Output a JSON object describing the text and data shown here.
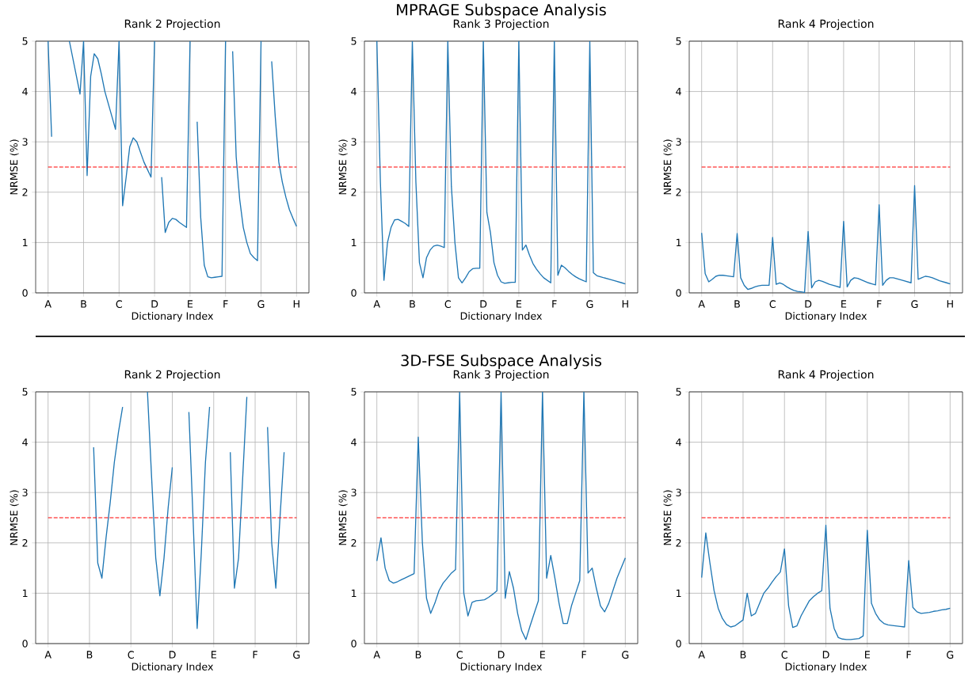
{
  "chart_data": [
    {
      "type": "line",
      "title": "Rank 2 Projection",
      "xlabel": "Dictionary Index",
      "ylabel": "NRMSE (%)",
      "ylim": [
        0,
        5
      ],
      "yticks": [
        0,
        1,
        2,
        3,
        4,
        5
      ],
      "grid": true,
      "line_style": "solid",
      "categories": [
        "A",
        null,
        null,
        null,
        null,
        null,
        null,
        null,
        null,
        null,
        "B",
        null,
        null,
        null,
        null,
        null,
        null,
        null,
        null,
        null,
        "C",
        null,
        null,
        null,
        null,
        null,
        null,
        null,
        null,
        null,
        "D",
        null,
        null,
        null,
        null,
        null,
        null,
        null,
        null,
        null,
        "E",
        null,
        null,
        null,
        null,
        null,
        null,
        null,
        null,
        null,
        "F",
        null,
        null,
        null,
        null,
        null,
        null,
        null,
        null,
        null,
        "G",
        null,
        null,
        null,
        null,
        null,
        null,
        null,
        null,
        null,
        "H"
      ],
      "ref_lines": [
        {
          "axis": "y",
          "value": 2.5,
          "color": "#ff0000",
          "line_style": "dashed"
        }
      ],
      "series": [
        {
          "color": "#1f77b4",
          "values": [
            5,
            3.1,
            null,
            null,
            null,
            null,
            5,
            4.65,
            4.3,
            3.95,
            5,
            2.33,
            4.3,
            4.75,
            4.65,
            4.35,
            4.0,
            3.75,
            3.5,
            3.25,
            5,
            1.73,
            2.3,
            2.9,
            3.08,
            3.0,
            2.8,
            2.6,
            2.45,
            2.3,
            5,
            null,
            2.3,
            1.2,
            1.4,
            1.48,
            1.46,
            1.4,
            1.35,
            1.3,
            5,
            null,
            3.4,
            1.5,
            0.55,
            0.32,
            0.3,
            0.31,
            0.32,
            0.33,
            5,
            null,
            4.8,
            2.7,
            1.85,
            1.3,
            1.0,
            0.78,
            0.7,
            0.64,
            5,
            null,
            null,
            4.6,
            3.5,
            2.6,
            2.2,
            1.9,
            1.65,
            1.48,
            1.32
          ]
        }
      ]
    },
    {
      "type": "line",
      "title": "Rank 3 Projection",
      "xlabel": "Dictionary Index",
      "ylabel": "NRMSE (%)",
      "annotations": [
        "MPRAGE Subspace Analysis"
      ],
      "ylim": [
        0,
        5
      ],
      "yticks": [
        0,
        1,
        2,
        3,
        4,
        5
      ],
      "grid": true,
      "line_style": "solid",
      "categories": [
        "A",
        null,
        null,
        null,
        null,
        null,
        null,
        null,
        null,
        null,
        "B",
        null,
        null,
        null,
        null,
        null,
        null,
        null,
        null,
        null,
        "C",
        null,
        null,
        null,
        null,
        null,
        null,
        null,
        null,
        null,
        "D",
        null,
        null,
        null,
        null,
        null,
        null,
        null,
        null,
        null,
        "E",
        null,
        null,
        null,
        null,
        null,
        null,
        null,
        null,
        null,
        "F",
        null,
        null,
        null,
        null,
        null,
        null,
        null,
        null,
        null,
        "G",
        null,
        null,
        null,
        null,
        null,
        null,
        null,
        null,
        null,
        "H"
      ],
      "ref_lines": [
        {
          "axis": "y",
          "value": 2.5,
          "color": "#ff0000",
          "line_style": "dashed"
        }
      ],
      "series": [
        {
          "color": "#1f77b4",
          "values": [
            5,
            2.2,
            0.25,
            1.0,
            1.3,
            1.45,
            1.46,
            1.42,
            1.38,
            1.32,
            5,
            2.2,
            0.6,
            0.3,
            0.7,
            0.85,
            0.93,
            0.95,
            0.93,
            0.9,
            5,
            2.12,
            1.0,
            0.3,
            0.2,
            0.3,
            0.42,
            0.48,
            0.49,
            0.49,
            5,
            1.6,
            1.2,
            0.6,
            0.35,
            0.22,
            0.19,
            0.2,
            0.21,
            0.21,
            5,
            0.85,
            0.95,
            0.75,
            0.58,
            0.47,
            0.38,
            0.3,
            0.25,
            0.2,
            5,
            0.35,
            0.55,
            0.5,
            0.43,
            0.37,
            0.32,
            0.28,
            0.25,
            0.22,
            5,
            0.4,
            0.34,
            0.32,
            0.3,
            0.28,
            0.26,
            0.24,
            0.22,
            0.2,
            0.18
          ]
        }
      ]
    },
    {
      "type": "line",
      "title": "Rank 4 Projection",
      "xlabel": "Dictionary Index",
      "ylabel": "NRMSE (%)",
      "ylim": [
        0,
        5
      ],
      "yticks": [
        0,
        1,
        2,
        3,
        4,
        5
      ],
      "grid": true,
      "line_style": "solid",
      "categories": [
        "A",
        null,
        null,
        null,
        null,
        null,
        null,
        null,
        null,
        null,
        "B",
        null,
        null,
        null,
        null,
        null,
        null,
        null,
        null,
        null,
        "C",
        null,
        null,
        null,
        null,
        null,
        null,
        null,
        null,
        null,
        "D",
        null,
        null,
        null,
        null,
        null,
        null,
        null,
        null,
        null,
        "E",
        null,
        null,
        null,
        null,
        null,
        null,
        null,
        null,
        null,
        "F",
        null,
        null,
        null,
        null,
        null,
        null,
        null,
        null,
        null,
        "G",
        null,
        null,
        null,
        null,
        null,
        null,
        null,
        null,
        null,
        "H"
      ],
      "ref_lines": [
        {
          "axis": "y",
          "value": 2.5,
          "color": "#ff0000",
          "line_style": "dashed"
        }
      ],
      "series": [
        {
          "color": "#1f77b4",
          "values": [
            1.19,
            0.38,
            0.22,
            0.27,
            0.33,
            0.35,
            0.35,
            0.34,
            0.33,
            0.32,
            1.18,
            0.3,
            0.15,
            0.07,
            0.09,
            0.12,
            0.14,
            0.15,
            0.15,
            0.15,
            1.1,
            0.17,
            0.2,
            0.17,
            0.12,
            0.08,
            0.05,
            0.03,
            0.02,
            0.01,
            1.22,
            0.1,
            0.22,
            0.25,
            0.23,
            0.2,
            0.17,
            0.15,
            0.13,
            0.11,
            1.42,
            0.12,
            0.25,
            0.3,
            0.29,
            0.26,
            0.23,
            0.2,
            0.18,
            0.16,
            1.75,
            0.15,
            0.25,
            0.3,
            0.3,
            0.28,
            0.26,
            0.24,
            0.22,
            0.2,
            2.13,
            0.27,
            0.3,
            0.33,
            0.32,
            0.3,
            0.27,
            0.24,
            0.22,
            0.2,
            0.18
          ]
        }
      ]
    },
    {
      "type": "line",
      "title": "Rank 2 Projection",
      "xlabel": "Dictionary Index",
      "ylabel": "NRMSE (%)",
      "ylim": [
        0,
        5
      ],
      "yticks": [
        0,
        1,
        2,
        3,
        4,
        5
      ],
      "grid": true,
      "line_style": "solid",
      "categories": [
        "A",
        null,
        null,
        null,
        null,
        null,
        null,
        null,
        null,
        null,
        "B",
        null,
        null,
        null,
        null,
        null,
        null,
        null,
        null,
        null,
        "C",
        null,
        null,
        null,
        null,
        null,
        null,
        null,
        null,
        null,
        "D",
        null,
        null,
        null,
        null,
        null,
        null,
        null,
        null,
        null,
        "E",
        null,
        null,
        null,
        null,
        null,
        null,
        null,
        null,
        null,
        "F",
        null,
        null,
        null,
        null,
        null,
        null,
        null,
        null,
        null,
        "G"
      ],
      "ref_lines": [
        {
          "axis": "y",
          "value": 2.5,
          "color": "#ff0000",
          "line_style": "dashed"
        }
      ],
      "series": [
        {
          "color": "#1f77b4",
          "values": [
            null,
            null,
            null,
            null,
            null,
            null,
            null,
            null,
            null,
            null,
            null,
            3.9,
            1.6,
            1.3,
            2.1,
            2.8,
            3.6,
            4.2,
            4.7,
            null,
            null,
            null,
            null,
            null,
            5,
            3.3,
            1.7,
            0.95,
            1.7,
            2.7,
            3.5,
            null,
            null,
            null,
            4.6,
            2.5,
            0.3,
            1.8,
            3.6,
            4.7,
            null,
            null,
            null,
            null,
            3.8,
            1.1,
            1.7,
            3.3,
            4.9,
            null,
            null,
            null,
            null,
            4.3,
            2.0,
            1.1,
            2.5,
            3.8,
            null,
            null,
            null
          ]
        }
      ]
    },
    {
      "type": "line",
      "title": "Rank 3 Projection",
      "xlabel": "Dictionary Index",
      "ylabel": "NRMSE (%)",
      "annotations": [
        "3D-FSE Subspace Analysis"
      ],
      "ylim": [
        0,
        5
      ],
      "yticks": [
        0,
        1,
        2,
        3,
        4,
        5
      ],
      "grid": true,
      "line_style": "solid",
      "categories": [
        "A",
        null,
        null,
        null,
        null,
        null,
        null,
        null,
        null,
        null,
        "B",
        null,
        null,
        null,
        null,
        null,
        null,
        null,
        null,
        null,
        "C",
        null,
        null,
        null,
        null,
        null,
        null,
        null,
        null,
        null,
        "D",
        null,
        null,
        null,
        null,
        null,
        null,
        null,
        null,
        null,
        "E",
        null,
        null,
        null,
        null,
        null,
        null,
        null,
        null,
        null,
        "F",
        null,
        null,
        null,
        null,
        null,
        null,
        null,
        null,
        null,
        "G"
      ],
      "ref_lines": [
        {
          "axis": "y",
          "value": 2.5,
          "color": "#ff0000",
          "line_style": "dashed"
        }
      ],
      "series": [
        {
          "color": "#1f77b4",
          "values": [
            1.64,
            2.1,
            1.5,
            1.25,
            1.2,
            1.23,
            1.27,
            1.31,
            1.35,
            1.39,
            4.1,
            2.0,
            0.9,
            0.6,
            0.8,
            1.05,
            1.2,
            1.3,
            1.4,
            1.47,
            5,
            1.0,
            0.55,
            0.82,
            0.85,
            0.86,
            0.87,
            0.92,
            0.98,
            1.05,
            5,
            0.9,
            1.43,
            1.1,
            0.6,
            0.25,
            0.08,
            0.35,
            0.6,
            0.85,
            5,
            1.3,
            1.75,
            1.3,
            0.8,
            0.4,
            0.4,
            0.75,
            1.0,
            1.25,
            5,
            1.4,
            1.5,
            1.1,
            0.75,
            0.63,
            0.8,
            1.05,
            1.3,
            1.5,
            1.7
          ]
        }
      ]
    },
    {
      "type": "line",
      "title": "Rank 4 Projection",
      "xlabel": "Dictionary Index",
      "ylabel": "NRMSE (%)",
      "ylim": [
        0,
        5
      ],
      "yticks": [
        0,
        1,
        2,
        3,
        4,
        5
      ],
      "grid": true,
      "line_style": "solid",
      "categories": [
        "A",
        null,
        null,
        null,
        null,
        null,
        null,
        null,
        null,
        null,
        "B",
        null,
        null,
        null,
        null,
        null,
        null,
        null,
        null,
        null,
        "C",
        null,
        null,
        null,
        null,
        null,
        null,
        null,
        null,
        null,
        "D",
        null,
        null,
        null,
        null,
        null,
        null,
        null,
        null,
        null,
        "E",
        null,
        null,
        null,
        null,
        null,
        null,
        null,
        null,
        null,
        "F",
        null,
        null,
        null,
        null,
        null,
        null,
        null,
        null,
        null,
        "G"
      ],
      "ref_lines": [
        {
          "axis": "y",
          "value": 2.5,
          "color": "#ff0000",
          "line_style": "dashed"
        }
      ],
      "series": [
        {
          "color": "#1f77b4",
          "values": [
            1.31,
            2.2,
            1.6,
            1.05,
            0.7,
            0.5,
            0.38,
            0.33,
            0.35,
            0.41,
            0.47,
            1.0,
            0.55,
            0.6,
            0.8,
            1.0,
            1.1,
            1.22,
            1.33,
            1.42,
            1.88,
            0.75,
            0.32,
            0.35,
            0.55,
            0.7,
            0.85,
            0.93,
            1.0,
            1.05,
            2.35,
            0.7,
            0.3,
            0.12,
            0.09,
            0.08,
            0.08,
            0.09,
            0.1,
            0.15,
            2.25,
            0.8,
            0.6,
            0.47,
            0.4,
            0.37,
            0.36,
            0.35,
            0.34,
            0.33,
            1.65,
            0.72,
            0.63,
            0.6,
            0.61,
            0.62,
            0.64,
            0.65,
            0.67,
            0.68,
            0.7
          ]
        }
      ]
    }
  ]
}
